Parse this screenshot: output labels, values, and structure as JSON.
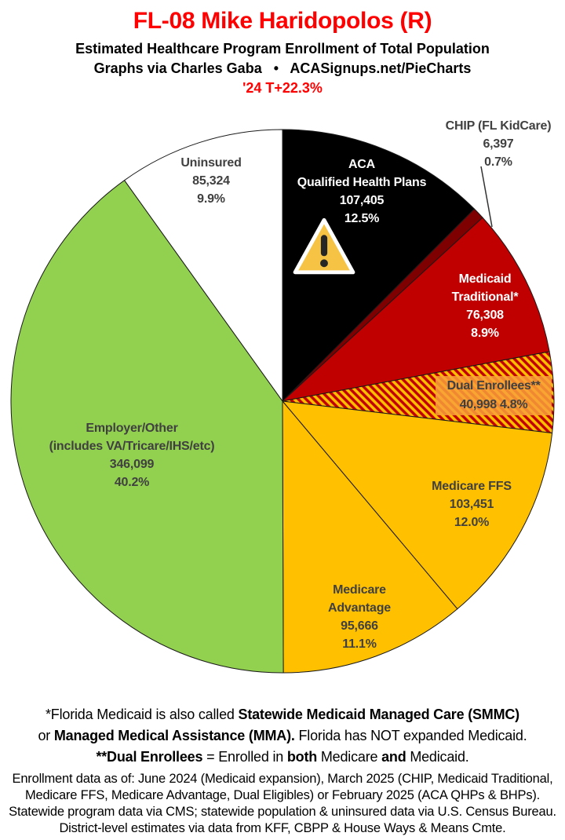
{
  "header": {
    "title": "FL-08 Mike Haridopolos (R)",
    "subtitle": "Estimated Healthcare Program Enrollment of Total Population",
    "credit": "Graphs via Charles Gaba   •   ACASignups.net/PieCharts",
    "trend": "'24 T+22.3%"
  },
  "colors": {
    "accent_red": "#ff0000",
    "label_dark": "#404040",
    "label_light": "#ffffff",
    "slice_border": "#1a1a1a"
  },
  "icons": {
    "warning_triangle": "⚠"
  },
  "chart_data": {
    "type": "pie",
    "title": "FL-08 Mike Haridopolos (R) — Estimated Healthcare Program Enrollment of Total Population",
    "start_angle_deg": 0,
    "direction": "clockwise",
    "legend_position": "labels-on-slices",
    "slices": [
      {
        "id": "aca",
        "name": "ACA Qualified Health Plans",
        "value": 107405,
        "pct": 12.5,
        "color": "#000000",
        "label_lines": [
          "ACA",
          "Qualified Health Plans",
          "107,405",
          "12.5%"
        ],
        "label_color": "#ffffff"
      },
      {
        "id": "chip",
        "name": "CHIP (FL KidCare)",
        "value": 6397,
        "pct": 0.7,
        "color": "#7f0000",
        "callout": true,
        "label_lines": [
          "CHIP (FL KidCare)",
          "6,397",
          "0.7%"
        ],
        "label_color": "#404040"
      },
      {
        "id": "medicaid",
        "name": "Medicaid Traditional*",
        "value": 76308,
        "pct": 8.9,
        "color": "#c00000",
        "label_lines": [
          "Medicaid",
          "Traditional*",
          "76,308",
          "8.9%"
        ],
        "label_color": "#ffffff"
      },
      {
        "id": "dual",
        "name": "Dual Enrollees**",
        "value": 40998,
        "pct": 4.8,
        "pattern": {
          "bg": "#ffc000",
          "stripe": "#c00000"
        },
        "label_box": "#f8a03ad9",
        "label_lines": [
          "Dual Enrollees**",
          "40,998 4.8%"
        ],
        "label_color": "#404040"
      },
      {
        "id": "medicare-ffs",
        "name": "Medicare FFS",
        "value": 103451,
        "pct": 12.0,
        "color": "#ffc000",
        "label_lines": [
          "Medicare FFS",
          "103,451",
          "12.0%"
        ],
        "label_color": "#404040"
      },
      {
        "id": "medicare-advantage",
        "name": "Medicare Advantage",
        "value": 95666,
        "pct": 11.1,
        "color": "#ffc000",
        "label_lines": [
          "Medicare",
          "Advantage",
          "95,666",
          "11.1%"
        ],
        "label_color": "#404040"
      },
      {
        "id": "employer",
        "name": "Employer/Other (includes VA/Tricare/IHS/etc)",
        "value": 346099,
        "pct": 40.2,
        "color": "#92d050",
        "label_lines": [
          "Employer/Other",
          "(includes VA/Tricare/IHS/etc)",
          "346,099",
          "40.2%"
        ],
        "label_color": "#404040"
      },
      {
        "id": "uninsured",
        "name": "Uninsured",
        "value": 85324,
        "pct": 9.9,
        "color": "#ffffff",
        "label_lines": [
          "Uninsured",
          "85,324",
          "9.9%"
        ],
        "label_color": "#404040"
      }
    ]
  },
  "footnote1": {
    "line1": [
      {
        "t": "*Florida Medicaid is also called "
      },
      {
        "t": "Statewide Medicaid Managed Care (SMMC)",
        "b": true
      }
    ],
    "line2": [
      {
        "t": "or "
      },
      {
        "t": "Managed Medical Assistance (MMA).",
        "b": true
      },
      {
        "t": " Florida has NOT expanded Medicaid."
      }
    ],
    "line3": [
      {
        "t": "**Dual Enrollees",
        "b": true
      },
      {
        "t": " = Enrolled in "
      },
      {
        "t": "both",
        "b": true
      },
      {
        "t": " Medicare "
      },
      {
        "t": "and",
        "b": true
      },
      {
        "t": " Medicaid."
      }
    ]
  },
  "footnote2": {
    "lines": [
      "Enrollment data as of: June 2024 (Medicaid expansion), March 2025 (CHIP, Medicaid Traditional,",
      "Medicare FFS, Medicare Advantage, Dual Eligibles) or February 2025 (ACA QHPs & BHPs).",
      "Statewide program data via CMS; statewide population & uninsured data via U.S. Census Bureau.",
      "District-level estimates via data from KFF, CBPP & House Ways & Means Cmte."
    ]
  }
}
